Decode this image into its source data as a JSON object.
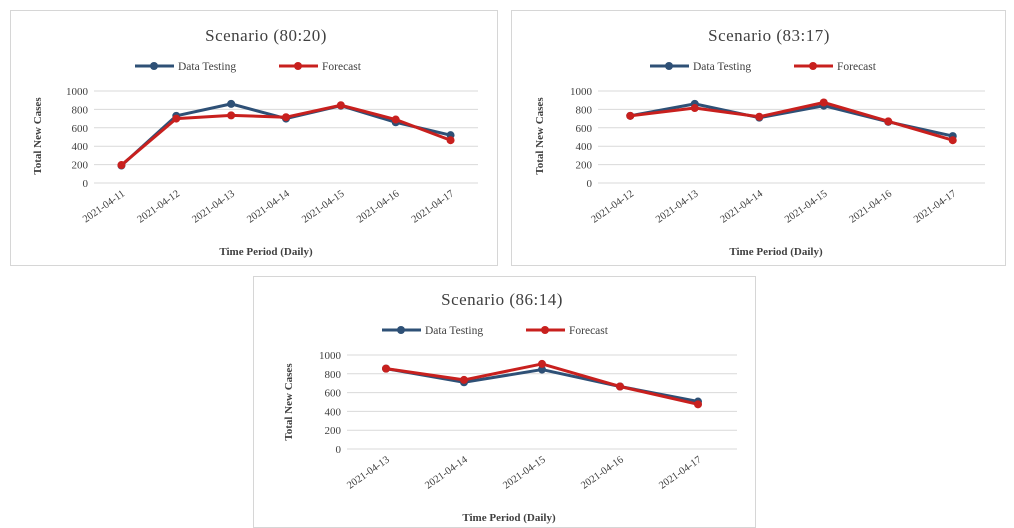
{
  "legend": {
    "series_a": "Data Testing",
    "series_b": "Forecast"
  },
  "colors": {
    "series_a": "#2e5076",
    "series_b": "#c8201e",
    "gridline": "#d9d9d9",
    "text": "#404040"
  },
  "chart_data": [
    {
      "type": "line",
      "title": "Scenario (80:20)",
      "xlabel": "Time Period (Daily)",
      "ylabel": "Total New Cases",
      "ylim": [
        0,
        1000
      ],
      "yticks": [
        "0",
        "200",
        "400",
        "600",
        "800",
        "1000"
      ],
      "x": [
        "2021-04-11",
        "2021-04-12",
        "2021-04-13",
        "2021-04-14",
        "2021-04-15",
        "2021-04-16",
        "2021-04-17"
      ],
      "series": [
        {
          "name": "Data Testing",
          "values": [
            190,
            730,
            860,
            700,
            840,
            660,
            520
          ]
        },
        {
          "name": "Forecast",
          "values": [
            195,
            700,
            735,
            715,
            845,
            690,
            465
          ]
        }
      ],
      "grid": true,
      "legend_position": "top"
    },
    {
      "type": "line",
      "title": "Scenario (83:17)",
      "xlabel": "Time Period (Daily)",
      "ylabel": "Total New Cases",
      "ylim": [
        0,
        1000
      ],
      "yticks": [
        "0",
        "200",
        "400",
        "600",
        "800",
        "1000"
      ],
      "x": [
        "2021-04-12",
        "2021-04-13",
        "2021-04-14",
        "2021-04-15",
        "2021-04-16",
        "2021-04-17"
      ],
      "series": [
        {
          "name": "Data Testing",
          "values": [
            730,
            860,
            710,
            840,
            665,
            510
          ]
        },
        {
          "name": "Forecast",
          "values": [
            730,
            815,
            720,
            875,
            670,
            465
          ]
        }
      ],
      "grid": true,
      "legend_position": "top"
    },
    {
      "type": "line",
      "title": "Scenario (86:14)",
      "xlabel": "Time Period (Daily)",
      "ylabel": "Total New Cases",
      "ylim": [
        0,
        1000
      ],
      "yticks": [
        "0",
        "200",
        "400",
        "600",
        "800",
        "1000"
      ],
      "x": [
        "2021-04-13",
        "2021-04-14",
        "2021-04-15",
        "2021-04-16",
        "2021-04-17"
      ],
      "series": [
        {
          "name": "Data Testing",
          "values": [
            855,
            710,
            845,
            665,
            505
          ]
        },
        {
          "name": "Forecast",
          "values": [
            855,
            735,
            905,
            665,
            475
          ]
        }
      ],
      "grid": true,
      "legend_position": "top"
    }
  ]
}
